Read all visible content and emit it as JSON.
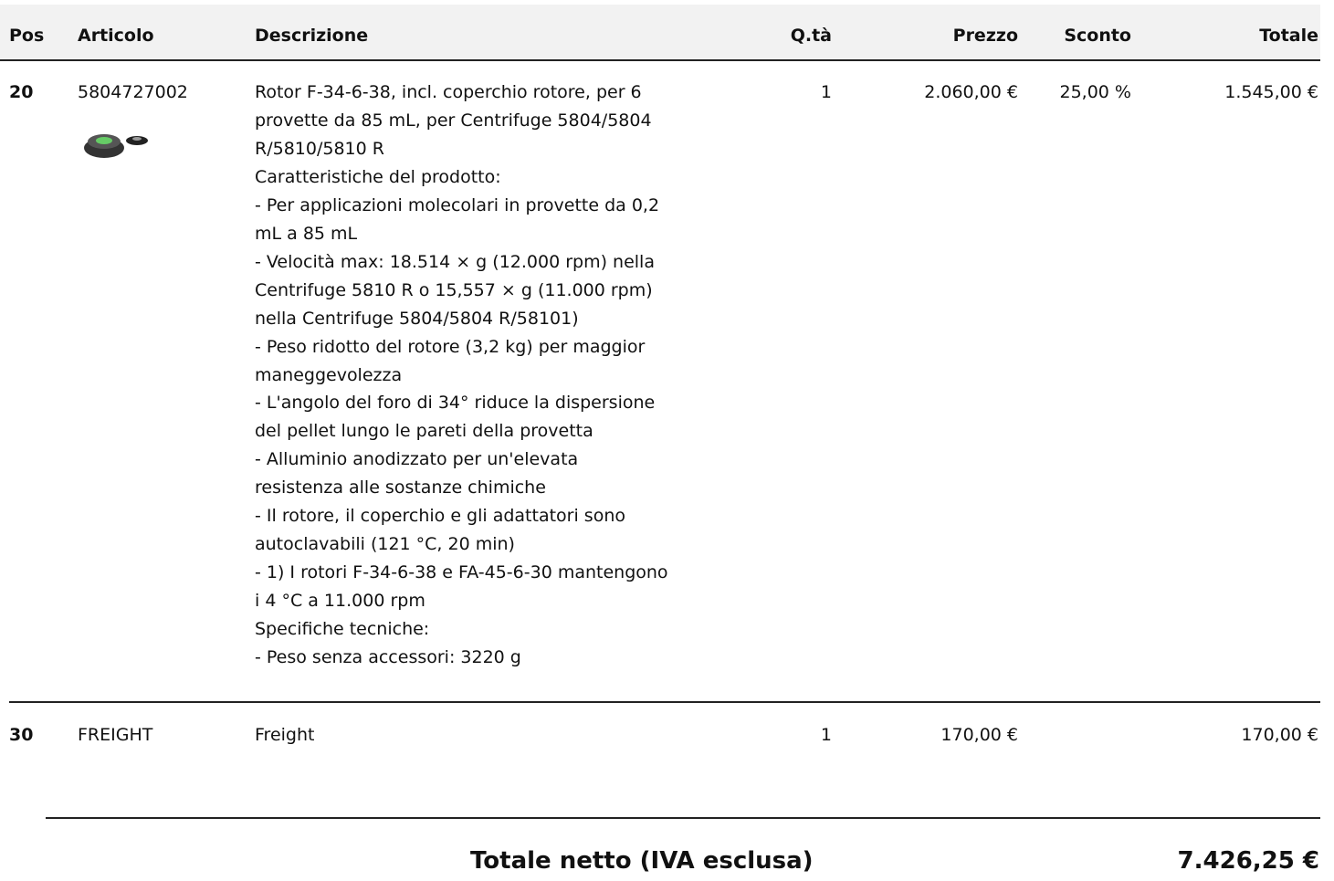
{
  "table": {
    "columns": [
      "Pos",
      "Articolo",
      "Descrizione",
      "Q.tà",
      "Prezzo",
      "Sconto",
      "Totale"
    ],
    "rows": [
      {
        "pos": "20",
        "article": "5804727002",
        "description": [
          "Rotor F-34-6-38, incl. coperchio rotore, per 6",
          "provette da 85 mL, per Centrifuge 5804/5804",
          "R/5810/5810 R",
          "Caratteristiche del prodotto:",
          "- Per applicazioni molecolari in provette da 0,2",
          "mL a 85 mL",
          "- Velocità max: 18.514 × g (12.000 rpm) nella",
          "Centrifuge 5810 R o 15,557 × g (11.000 rpm)",
          "nella Centrifuge 5804/5804 R/58101)",
          "- Peso ridotto del rotore (3,2 kg) per maggior",
          "maneggevolezza",
          "- L'angolo del foro di 34° riduce la dispersione",
          "del pellet lungo le pareti della provetta",
          "- Alluminio anodizzato per un'elevata",
          "resistenza alle sostanze chimiche",
          "- Il rotore, il coperchio e gli adattatori sono",
          "autoclavabili (121 °C, 20 min)",
          "- 1) I rotori F-34-6-38 e FA-45-6-30 mantengono",
          "i 4 °C a 11.000 rpm",
          "Specifiche tecniche:",
          "- Peso senza accessori: 3220 g"
        ],
        "qty": "1",
        "price": "2.060,00 €",
        "discount": "25,00 %",
        "total": "1.545,00 €"
      },
      {
        "pos": "30",
        "article": "FREIGHT",
        "description": [
          "Freight"
        ],
        "qty": "1",
        "price": "170,00 €",
        "total": "170,00 €"
      }
    ]
  },
  "footer": {
    "label": "Totale netto (IVA esclusa)",
    "value": "7.426,25 €"
  }
}
